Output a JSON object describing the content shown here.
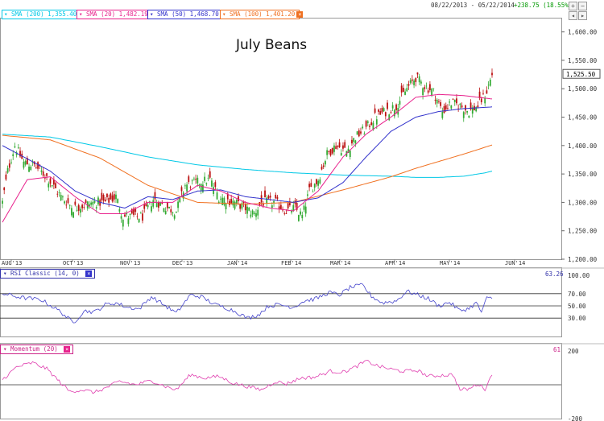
{
  "header": {
    "date_range": "08/22/2013 - 05/22/2014",
    "change": "+238.75 (18.55%)",
    "change_color": "#009900"
  },
  "indicators": [
    {
      "label": "SMA (200) 1,355.40",
      "color": "#00c8e6"
    },
    {
      "label": "SMA (20) 1,482.19",
      "color": "#e8208c"
    },
    {
      "label": "SMA (50) 1,468.70",
      "color": "#3333cc"
    },
    {
      "label": "SMA (100) 1,401.20",
      "color": "#f07020"
    }
  ],
  "tools": [
    "zoom-in-icon",
    "zoom-out-icon",
    "pan-left-icon",
    "pan-right-icon"
  ],
  "chart_data": [
    {
      "type": "candlestick",
      "title": "July Beans",
      "x_ticks": [
        "AUG'13",
        "OCT'13",
        "NOV'13",
        "DEC'13",
        "JAN'14",
        "FEB'14",
        "MAR'14",
        "APR'14",
        "MAY'14",
        "JUN'14"
      ],
      "y_ticks": [
        "1,600.00",
        "1,550.00",
        "1,500.00",
        "1,450.00",
        "1,400.00",
        "1,350.00",
        "1,300.00",
        "1,250.00",
        "1,200.00"
      ],
      "ylim": [
        1200,
        1625
      ],
      "last_price": "1,525.50",
      "close_anchors": [
        [
          0,
          1300
        ],
        [
          3,
          1355
        ],
        [
          7,
          1400
        ],
        [
          12,
          1370
        ],
        [
          18,
          1365
        ],
        [
          25,
          1345
        ],
        [
          33,
          1310
        ],
        [
          40,
          1290
        ],
        [
          46,
          1295
        ],
        [
          52,
          1300
        ],
        [
          58,
          1300
        ],
        [
          64,
          1310
        ],
        [
          68,
          1275
        ],
        [
          73,
          1275
        ],
        [
          79,
          1275
        ],
        [
          85,
          1305
        ],
        [
          93,
          1290
        ],
        [
          98,
          1285
        ],
        [
          103,
          1330
        ],
        [
          110,
          1335
        ],
        [
          117,
          1340
        ],
        [
          122,
          1310
        ],
        [
          126,
          1305
        ],
        [
          131,
          1300
        ],
        [
          137,
          1290
        ],
        [
          142,
          1280
        ],
        [
          146,
          1300
        ],
        [
          150,
          1300
        ],
        [
          154,
          1300
        ],
        [
          160,
          1285
        ],
        [
          165,
          1290
        ],
        [
          169,
          1275
        ],
        [
          173,
          1320
        ],
        [
          178,
          1340
        ],
        [
          183,
          1385
        ],
        [
          188,
          1400
        ],
        [
          194,
          1390
        ],
        [
          199,
          1415
        ],
        [
          205,
          1430
        ],
        [
          210,
          1450
        ],
        [
          216,
          1460
        ],
        [
          222,
          1470
        ],
        [
          228,
          1500
        ],
        [
          233,
          1520
        ],
        [
          238,
          1505
        ],
        [
          243,
          1495
        ],
        [
          248,
          1460
        ],
        [
          253,
          1475
        ],
        [
          258,
          1470
        ],
        [
          263,
          1460
        ],
        [
          268,
          1470
        ],
        [
          273,
          1495
        ],
        [
          276,
          1525
        ]
      ],
      "sma_200": [
        [
          0,
          1420
        ],
        [
          27,
          1415
        ],
        [
          55,
          1398
        ],
        [
          82,
          1380
        ],
        [
          110,
          1366
        ],
        [
          137,
          1358
        ],
        [
          164,
          1352
        ],
        [
          192,
          1348
        ],
        [
          219,
          1346
        ],
        [
          233,
          1344
        ],
        [
          246,
          1344
        ],
        [
          260,
          1346
        ],
        [
          272,
          1352
        ],
        [
          276,
          1355
        ]
      ],
      "sma_100": [
        [
          0,
          1418
        ],
        [
          27,
          1410
        ],
        [
          55,
          1378
        ],
        [
          82,
          1330
        ],
        [
          110,
          1300
        ],
        [
          137,
          1297
        ],
        [
          164,
          1300
        ],
        [
          192,
          1322
        ],
        [
          219,
          1345
        ],
        [
          233,
          1360
        ],
        [
          246,
          1372
        ],
        [
          260,
          1385
        ],
        [
          276,
          1401
        ]
      ],
      "sma_50": [
        [
          0,
          1400
        ],
        [
          27,
          1355
        ],
        [
          41,
          1320
        ],
        [
          55,
          1300
        ],
        [
          69,
          1290
        ],
        [
          82,
          1310
        ],
        [
          96,
          1305
        ],
        [
          110,
          1320
        ],
        [
          123,
          1322
        ],
        [
          137,
          1310
        ],
        [
          151,
          1305
        ],
        [
          164,
          1300
        ],
        [
          178,
          1308
        ],
        [
          192,
          1335
        ],
        [
          205,
          1380
        ],
        [
          219,
          1425
        ],
        [
          233,
          1450
        ],
        [
          246,
          1460
        ],
        [
          260,
          1465
        ],
        [
          276,
          1468
        ]
      ],
      "sma_20": [
        [
          0,
          1265
        ],
        [
          14,
          1340
        ],
        [
          27,
          1345
        ],
        [
          41,
          1310
        ],
        [
          55,
          1280
        ],
        [
          69,
          1280
        ],
        [
          82,
          1300
        ],
        [
          96,
          1300
        ],
        [
          110,
          1330
        ],
        [
          123,
          1320
        ],
        [
          137,
          1300
        ],
        [
          151,
          1290
        ],
        [
          164,
          1285
        ],
        [
          178,
          1320
        ],
        [
          192,
          1380
        ],
        [
          205,
          1420
        ],
        [
          219,
          1450
        ],
        [
          233,
          1485
        ],
        [
          246,
          1490
        ],
        [
          260,
          1488
        ],
        [
          276,
          1482
        ]
      ]
    },
    {
      "type": "line",
      "title": "RSI Classic (14, 0)",
      "last_value": "63.26",
      "y_ticks": [
        "100.00",
        "70.00",
        "50.00",
        "30.00"
      ],
      "ylim": [
        0,
        100
      ],
      "levels": [
        70,
        50,
        30
      ],
      "anchors": [
        [
          0,
          70
        ],
        [
          12,
          63
        ],
        [
          22,
          60
        ],
        [
          33,
          40
        ],
        [
          40,
          22
        ],
        [
          46,
          42
        ],
        [
          52,
          40
        ],
        [
          58,
          52
        ],
        [
          64,
          55
        ],
        [
          70,
          48
        ],
        [
          77,
          45
        ],
        [
          84,
          65
        ],
        [
          92,
          50
        ],
        [
          98,
          38
        ],
        [
          106,
          68
        ],
        [
          112,
          65
        ],
        [
          120,
          52
        ],
        [
          126,
          47
        ],
        [
          132,
          40
        ],
        [
          138,
          30
        ],
        [
          144,
          35
        ],
        [
          150,
          50
        ],
        [
          156,
          52
        ],
        [
          164,
          48
        ],
        [
          170,
          58
        ],
        [
          177,
          62
        ],
        [
          184,
          72
        ],
        [
          190,
          68
        ],
        [
          196,
          80
        ],
        [
          203,
          84
        ],
        [
          208,
          66
        ],
        [
          214,
          55
        ],
        [
          222,
          58
        ],
        [
          228,
          74
        ],
        [
          234,
          68
        ],
        [
          240,
          62
        ],
        [
          246,
          50
        ],
        [
          252,
          56
        ],
        [
          258,
          42
        ],
        [
          263,
          46
        ],
        [
          267,
          55
        ],
        [
          270,
          40
        ],
        [
          273,
          62
        ],
        [
          276,
          63
        ]
      ]
    },
    {
      "type": "line",
      "title": "Momentum (20)",
      "last_value": "61",
      "y_ticks": [
        "200",
        "-200"
      ],
      "ylim": [
        -200,
        200
      ],
      "levels": [
        0
      ],
      "anchors": [
        [
          0,
          30
        ],
        [
          8,
          105
        ],
        [
          17,
          130
        ],
        [
          25,
          95
        ],
        [
          32,
          20
        ],
        [
          38,
          -40
        ],
        [
          45,
          -30
        ],
        [
          52,
          -45
        ],
        [
          58,
          -20
        ],
        [
          66,
          20
        ],
        [
          75,
          0
        ],
        [
          84,
          25
        ],
        [
          92,
          -10
        ],
        [
          98,
          -30
        ],
        [
          106,
          60
        ],
        [
          114,
          40
        ],
        [
          122,
          50
        ],
        [
          130,
          10
        ],
        [
          138,
          -10
        ],
        [
          146,
          -30
        ],
        [
          154,
          20
        ],
        [
          160,
          5
        ],
        [
          168,
          40
        ],
        [
          176,
          45
        ],
        [
          185,
          80
        ],
        [
          192,
          75
        ],
        [
          198,
          100
        ],
        [
          205,
          140
        ],
        [
          212,
          110
        ],
        [
          220,
          90
        ],
        [
          226,
          80
        ],
        [
          234,
          85
        ],
        [
          240,
          50
        ],
        [
          246,
          55
        ],
        [
          254,
          60
        ],
        [
          258,
          -30
        ],
        [
          263,
          -25
        ],
        [
          268,
          5
        ],
        [
          272,
          -25
        ],
        [
          276,
          61
        ]
      ]
    }
  ]
}
